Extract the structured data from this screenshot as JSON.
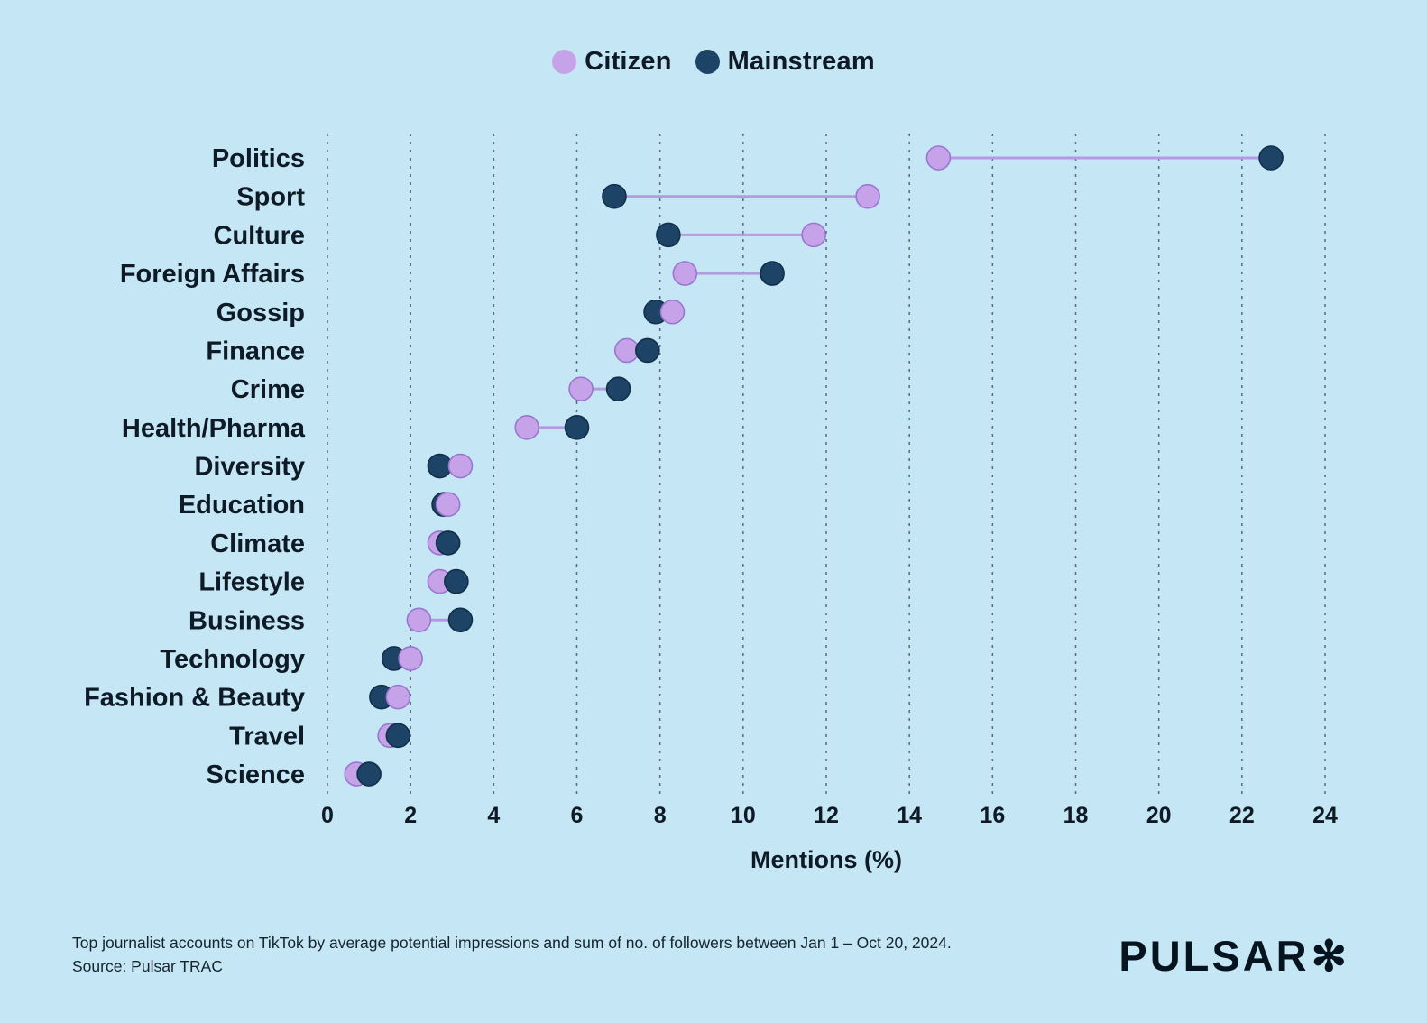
{
  "page": {
    "background_color": "#c5e6f4"
  },
  "legend": {
    "items": [
      {
        "label": "Citizen",
        "color": "#c6a3e8"
      },
      {
        "label": "Mainstream",
        "color": "#1d4466"
      }
    ]
  },
  "chart_data": {
    "type": "dumbbell",
    "categories": [
      "Politics",
      "Sport",
      "Culture",
      "Foreign Affairs",
      "Gossip",
      "Finance",
      "Crime",
      "Health/Pharma",
      "Diversity",
      "Education",
      "Climate",
      "Lifestyle",
      "Business",
      "Technology",
      "Fashion & Beauty",
      "Travel",
      "Science"
    ],
    "series": [
      {
        "name": "Citizen",
        "color": "#c6a3e8",
        "values": [
          14.7,
          13.0,
          11.7,
          8.6,
          8.3,
          7.2,
          6.1,
          4.8,
          3.2,
          2.9,
          2.7,
          2.7,
          2.2,
          2.0,
          1.7,
          1.5,
          0.7
        ]
      },
      {
        "name": "Mainstream",
        "color": "#1d4466",
        "values": [
          22.7,
          6.9,
          8.2,
          10.7,
          7.9,
          7.7,
          7.0,
          6.0,
          2.7,
          2.8,
          2.9,
          3.1,
          3.2,
          1.6,
          1.3,
          1.7,
          1.0
        ]
      }
    ],
    "xlabel": "Mentions (%)",
    "xlim": [
      0,
      24
    ],
    "xticks": [
      0,
      2,
      4,
      6,
      8,
      10,
      12,
      14,
      16,
      18,
      20,
      22,
      24
    ],
    "grid": "dashed-vertical",
    "legend_position": "top-center",
    "connector_color": "#b49ae0"
  },
  "footer": {
    "note_line1": "Top journalist accounts on TikTok by average potential impressions and sum of no. of followers between Jan 1 – Oct 20, 2024.",
    "note_line2": "Source: Pulsar TRAC",
    "logo_text": "PULSAR",
    "logo_star": "✻"
  }
}
